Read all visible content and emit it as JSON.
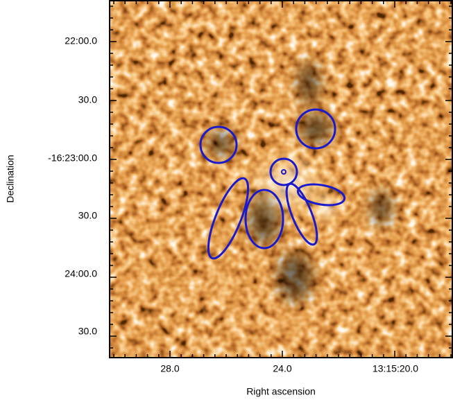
{
  "figure": {
    "x_axis": {
      "label": "Right ascension",
      "ticks": [
        "28.0",
        "24.0",
        "13:15:20.0"
      ]
    },
    "y_axis": {
      "label": "Declination",
      "ticks": [
        "22:00.0",
        "30.0",
        "-16:23:00.0",
        "30.0",
        "24:00.0",
        "30.0"
      ]
    }
  }
}
